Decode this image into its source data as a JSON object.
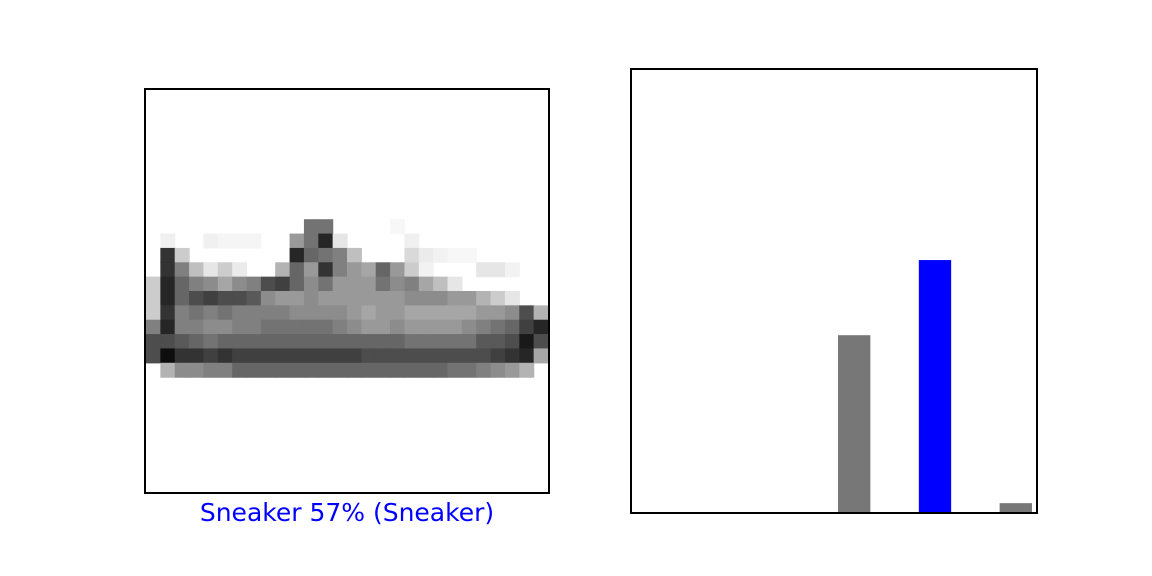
{
  "caption": {
    "text": "Sneaker 57% (Sneaker)",
    "color": "#0000ff"
  },
  "chart_data": [
    {
      "type": "image",
      "image_kind": "28x28 grayscale sneaker (shown with inverted gray colormap)",
      "dimensions": [
        28,
        28
      ],
      "row_range": [
        9,
        18
      ],
      "rows": [
        [
          0,
          0,
          0,
          0,
          0,
          0,
          0,
          0,
          0,
          0,
          0,
          0,
          0,
          0,
          0,
          0,
          0,
          0,
          0,
          0,
          0,
          0,
          0,
          0,
          0,
          0,
          0,
          0
        ],
        [
          0,
          0,
          0,
          0,
          0,
          0,
          0,
          0,
          0,
          0,
          0,
          0,
          0,
          0,
          0,
          0,
          0,
          0,
          0,
          0,
          0,
          0,
          0,
          0,
          0,
          0,
          0,
          0
        ],
        [
          0,
          0,
          0,
          0,
          0,
          0,
          0,
          0,
          0,
          0,
          0,
          0,
          0,
          0,
          0,
          0,
          0,
          0,
          0,
          0,
          0,
          0,
          0,
          0,
          0,
          0,
          0,
          0
        ],
        [
          0,
          0,
          0,
          0,
          0,
          0,
          0,
          0,
          0,
          0,
          0,
          0,
          0,
          0,
          0,
          0,
          0,
          0,
          0,
          0,
          0,
          0,
          0,
          0,
          0,
          0,
          0,
          0
        ],
        [
          0,
          0,
          0,
          0,
          0,
          0,
          0,
          0,
          0,
          0,
          0,
          0,
          0,
          0,
          0,
          0,
          0,
          0,
          0,
          0,
          0,
          0,
          0,
          0,
          0,
          0,
          0,
          0
        ],
        [
          0,
          0,
          0,
          0,
          0,
          0,
          0,
          0,
          0,
          0,
          0,
          0,
          0,
          0,
          0,
          0,
          0,
          0,
          0,
          0,
          0,
          0,
          0,
          0,
          0,
          0,
          0,
          0
        ],
        [
          0,
          0,
          0,
          0,
          0,
          0,
          0,
          0,
          0,
          0,
          0,
          0,
          0,
          0,
          0,
          0,
          0,
          0,
          0,
          0,
          0,
          0,
          0,
          0,
          0,
          0,
          0,
          0
        ],
        [
          0,
          0,
          0,
          0,
          0,
          0,
          0,
          0,
          0,
          0,
          0,
          0,
          0,
          0,
          0,
          0,
          0,
          0,
          0,
          0,
          0,
          0,
          0,
          0,
          0,
          0,
          0,
          0
        ],
        [
          0,
          0,
          0,
          0,
          0,
          0,
          0,
          0,
          0,
          0,
          0,
          0,
          0,
          0,
          0,
          0,
          0,
          0,
          0,
          0,
          0,
          0,
          0,
          0,
          0,
          0,
          0,
          0
        ],
        [
          0,
          0,
          0,
          0,
          0,
          0,
          0,
          0,
          0,
          0,
          0,
          55,
          55,
          0,
          0,
          0,
          0,
          3,
          0,
          0,
          0,
          0,
          0,
          0,
          0,
          0,
          0,
          0
        ],
        [
          0,
          6,
          0,
          0,
          6,
          4,
          4,
          4,
          0,
          0,
          40,
          55,
          85,
          10,
          0,
          0,
          0,
          0,
          6,
          0,
          0,
          0,
          0,
          0,
          0,
          0,
          0,
          0
        ],
        [
          0,
          80,
          20,
          0,
          0,
          0,
          0,
          0,
          0,
          0,
          85,
          60,
          55,
          50,
          25,
          0,
          0,
          0,
          15,
          8,
          5,
          3,
          3,
          0,
          0,
          0,
          0,
          0
        ],
        [
          0,
          80,
          50,
          25,
          10,
          20,
          8,
          0,
          0,
          30,
          60,
          40,
          80,
          50,
          40,
          35,
          60,
          40,
          20,
          5,
          0,
          0,
          0,
          10,
          10,
          5,
          0,
          0
        ],
        [
          20,
          85,
          60,
          50,
          45,
          35,
          45,
          50,
          70,
          75,
          60,
          45,
          55,
          40,
          40,
          40,
          55,
          45,
          50,
          35,
          25,
          10,
          0,
          0,
          0,
          0,
          0,
          0
        ],
        [
          20,
          85,
          60,
          70,
          75,
          70,
          70,
          65,
          45,
          40,
          40,
          45,
          40,
          40,
          40,
          40,
          40,
          40,
          45,
          45,
          45,
          40,
          40,
          30,
          20,
          10,
          0,
          0
        ],
        [
          20,
          80,
          50,
          55,
          50,
          55,
          50,
          50,
          50,
          50,
          45,
          45,
          45,
          45,
          40,
          35,
          40,
          40,
          35,
          35,
          35,
          35,
          35,
          40,
          40,
          45,
          70,
          30
        ],
        [
          50,
          85,
          50,
          50,
          45,
          45,
          50,
          50,
          55,
          55,
          55,
          55,
          55,
          50,
          45,
          40,
          40,
          45,
          40,
          40,
          40,
          40,
          45,
          50,
          55,
          60,
          75,
          85
        ],
        [
          70,
          70,
          65,
          60,
          55,
          60,
          60,
          60,
          60,
          60,
          60,
          60,
          60,
          60,
          60,
          60,
          60,
          60,
          55,
          55,
          55,
          55,
          55,
          65,
          65,
          70,
          90,
          70
        ],
        [
          70,
          95,
          80,
          80,
          75,
          80,
          75,
          75,
          75,
          75,
          75,
          75,
          75,
          75,
          75,
          70,
          70,
          70,
          70,
          70,
          70,
          70,
          70,
          70,
          75,
          80,
          85,
          35
        ],
        [
          0,
          30,
          45,
          45,
          50,
          50,
          60,
          60,
          60,
          60,
          60,
          60,
          60,
          60,
          60,
          60,
          60,
          60,
          60,
          60,
          60,
          55,
          55,
          50,
          45,
          40,
          30,
          0
        ],
        [
          0,
          0,
          0,
          0,
          0,
          0,
          0,
          0,
          0,
          0,
          0,
          0,
          0,
          0,
          0,
          0,
          0,
          0,
          0,
          0,
          0,
          0,
          0,
          0,
          0,
          0,
          0,
          0
        ],
        [
          0,
          0,
          0,
          0,
          0,
          0,
          0,
          0,
          0,
          0,
          0,
          0,
          0,
          0,
          0,
          0,
          0,
          0,
          0,
          0,
          0,
          0,
          0,
          0,
          0,
          0,
          0,
          0
        ],
        [
          0,
          0,
          0,
          0,
          0,
          0,
          0,
          0,
          0,
          0,
          0,
          0,
          0,
          0,
          0,
          0,
          0,
          0,
          0,
          0,
          0,
          0,
          0,
          0,
          0,
          0,
          0,
          0
        ],
        [
          0,
          0,
          0,
          0,
          0,
          0,
          0,
          0,
          0,
          0,
          0,
          0,
          0,
          0,
          0,
          0,
          0,
          0,
          0,
          0,
          0,
          0,
          0,
          0,
          0,
          0,
          0,
          0
        ],
        [
          0,
          0,
          0,
          0,
          0,
          0,
          0,
          0,
          0,
          0,
          0,
          0,
          0,
          0,
          0,
          0,
          0,
          0,
          0,
          0,
          0,
          0,
          0,
          0,
          0,
          0,
          0,
          0
        ],
        [
          0,
          0,
          0,
          0,
          0,
          0,
          0,
          0,
          0,
          0,
          0,
          0,
          0,
          0,
          0,
          0,
          0,
          0,
          0,
          0,
          0,
          0,
          0,
          0,
          0,
          0,
          0,
          0
        ],
        [
          0,
          0,
          0,
          0,
          0,
          0,
          0,
          0,
          0,
          0,
          0,
          0,
          0,
          0,
          0,
          0,
          0,
          0,
          0,
          0,
          0,
          0,
          0,
          0,
          0,
          0,
          0,
          0
        ],
        [
          0,
          0,
          0,
          0,
          0,
          0,
          0,
          0,
          0,
          0,
          0,
          0,
          0,
          0,
          0,
          0,
          0,
          0,
          0,
          0,
          0,
          0,
          0,
          0,
          0,
          0,
          0,
          0
        ]
      ],
      "xticks": [],
      "yticks": [],
      "grid": false
    },
    {
      "type": "bar",
      "x": [
        0,
        1,
        2,
        3,
        4,
        5,
        6,
        7,
        8,
        9
      ],
      "values": [
        0.0,
        0.0,
        0.0,
        0.0,
        0.0,
        0.4,
        0.0,
        0.57,
        0.0,
        0.02
      ],
      "bar_colors": [
        "#777777",
        "#777777",
        "#777777",
        "#777777",
        "#777777",
        "#777777",
        "#777777",
        "#0000ff",
        "#777777",
        "#777777"
      ],
      "xlim": [
        -0.5,
        9.5
      ],
      "ylim": [
        0,
        1
      ],
      "xticks": [],
      "yticks": [],
      "grid": false
    }
  ]
}
